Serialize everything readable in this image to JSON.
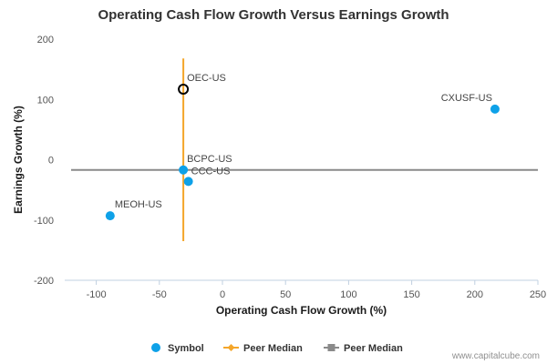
{
  "chart_data": {
    "type": "scatter",
    "title": "Operating Cash Flow Growth Versus Earnings Growth",
    "xlabel": "Operating Cash Flow Growth (%)",
    "ylabel": "Earnings Growth (%)",
    "xlim": [
      -125,
      250
    ],
    "ylim": [
      -200,
      200
    ],
    "x_ticks": [
      -100,
      -50,
      0,
      50,
      100,
      150,
      200,
      250
    ],
    "y_ticks": [
      -200,
      -100,
      0,
      100,
      200
    ],
    "grid": false,
    "legend_position": "bottom",
    "points": [
      {
        "label": "OEC-US",
        "x": -31,
        "y": 117,
        "style": "highlight"
      },
      {
        "label": "CXUSF-US",
        "x": 216,
        "y": 84,
        "style": "normal"
      },
      {
        "label": "BCPC-US",
        "x": -31,
        "y": -17,
        "style": "normal"
      },
      {
        "label": "CCC-US",
        "x": -27,
        "y": -36,
        "style": "normal"
      },
      {
        "label": "MEOH-US",
        "x": -89,
        "y": -93,
        "style": "normal"
      }
    ],
    "peer_median_x": -31,
    "peer_median_y": -17,
    "vertical_median_range": [
      -135,
      168
    ],
    "colors": {
      "symbol": "#0ea1e8",
      "peer_median_vertical": "#f4a62a",
      "peer_median_horizontal": "#8a8a8a",
      "highlight_stroke": "#000000"
    },
    "legend": [
      {
        "label": "Symbol",
        "kind": "dot",
        "color": "#0ea1e8"
      },
      {
        "label": "Peer Median",
        "kind": "line-diamond",
        "color": "#f4a62a"
      },
      {
        "label": "Peer Median",
        "kind": "line-square",
        "color": "#8a8a8a"
      }
    ]
  },
  "credit": "www.capitalcube.com"
}
